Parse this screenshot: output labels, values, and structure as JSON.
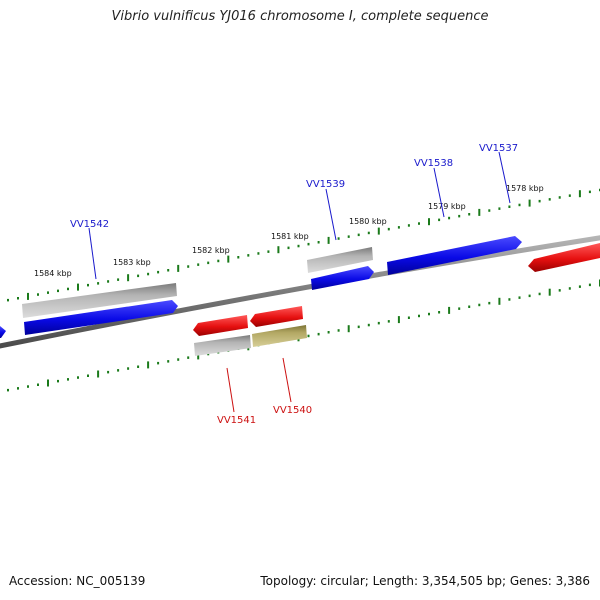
{
  "title": "Vibrio vulnificus YJ016 chromosome I, complete sequence",
  "footer": {
    "accession": "Accession: NC_005139",
    "summary": "Topology: circular; Length: 3,354,505 bp; Genes: 3,386"
  },
  "ruler_labels": [
    "1578 kbp",
    "1579 kbp",
    "1580 kbp",
    "1581 kbp",
    "1582 kbp",
    "1583 kbp",
    "1584 kbp"
  ],
  "gene_labels": {
    "forward": [
      "VV1537",
      "VV1538",
      "VV1539",
      "VV1542"
    ],
    "reverse": [
      "VV1540",
      "VV1541"
    ]
  },
  "colors": {
    "forward_label": "#1a1acc",
    "reverse_label": "#cc1111",
    "forward_gene": "#0a0ae6",
    "reverse_gene": "#e61010",
    "neutral_gene": "#b4b4b4",
    "olive_gene": "#b3a864",
    "tick": "#1a7a1a",
    "backbone": "#8a8a8a"
  }
}
